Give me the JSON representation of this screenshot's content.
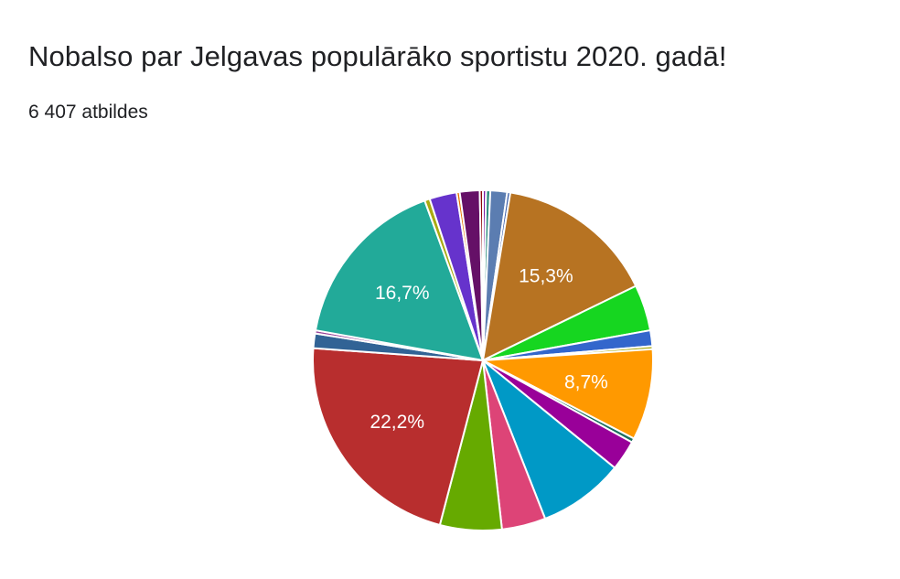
{
  "form": {
    "title": "Nobalso par Jelgavas populārāko sportistu 2020. gadā!",
    "responses": "6 407 atbildes"
  },
  "chart_data": {
    "type": "pie",
    "title": "Nobalso par Jelgavas populārāko sportistu 2020. gadā!",
    "subtitle": "6 407 atbildes",
    "start_angle_deg": 0,
    "direction": "clockwise",
    "legend": "none",
    "slices": [
      {
        "percent": 0.3,
        "color": "#7b1fa2",
        "label": ""
      },
      {
        "percent": 0.4,
        "color": "#2f8e7e",
        "label": ""
      },
      {
        "percent": 1.6,
        "color": "#5b7db1",
        "label": ""
      },
      {
        "percent": 0.3,
        "color": "#3b5ea8",
        "label": ""
      },
      {
        "percent": 15.3,
        "color": "#b77322",
        "label": "15,3%"
      },
      {
        "percent": 4.4,
        "color": "#16d620",
        "label": ""
      },
      {
        "percent": 1.5,
        "color": "#3366cc",
        "label": ""
      },
      {
        "percent": 0.3,
        "color": "#aaaa11",
        "label": ""
      },
      {
        "percent": 8.7,
        "color": "#ff9900",
        "label": "8,7%"
      },
      {
        "percent": 0.4,
        "color": "#1b6f5f",
        "label": ""
      },
      {
        "percent": 2.9,
        "color": "#990099",
        "label": ""
      },
      {
        "percent": 8.2,
        "color": "#0099c6",
        "label": ""
      },
      {
        "percent": 4.2,
        "color": "#dd4477",
        "label": ""
      },
      {
        "percent": 5.9,
        "color": "#66aa00",
        "label": ""
      },
      {
        "percent": 22.2,
        "color": "#b82e2e",
        "label": "22,2%"
      },
      {
        "percent": 1.4,
        "color": "#316395",
        "label": ""
      },
      {
        "percent": 0.3,
        "color": "#994499",
        "label": ""
      },
      {
        "percent": 16.7,
        "color": "#22aa99",
        "label": "16,7%"
      },
      {
        "percent": 0.5,
        "color": "#aaaa11",
        "label": ""
      },
      {
        "percent": 2.6,
        "color": "#6633cc",
        "label": ""
      },
      {
        "percent": 0.3,
        "color": "#e67300",
        "label": ""
      },
      {
        "percent": 1.9,
        "color": "#651067",
        "label": ""
      },
      {
        "percent": 0.3,
        "color": "#8b0707",
        "label": ""
      }
    ]
  }
}
